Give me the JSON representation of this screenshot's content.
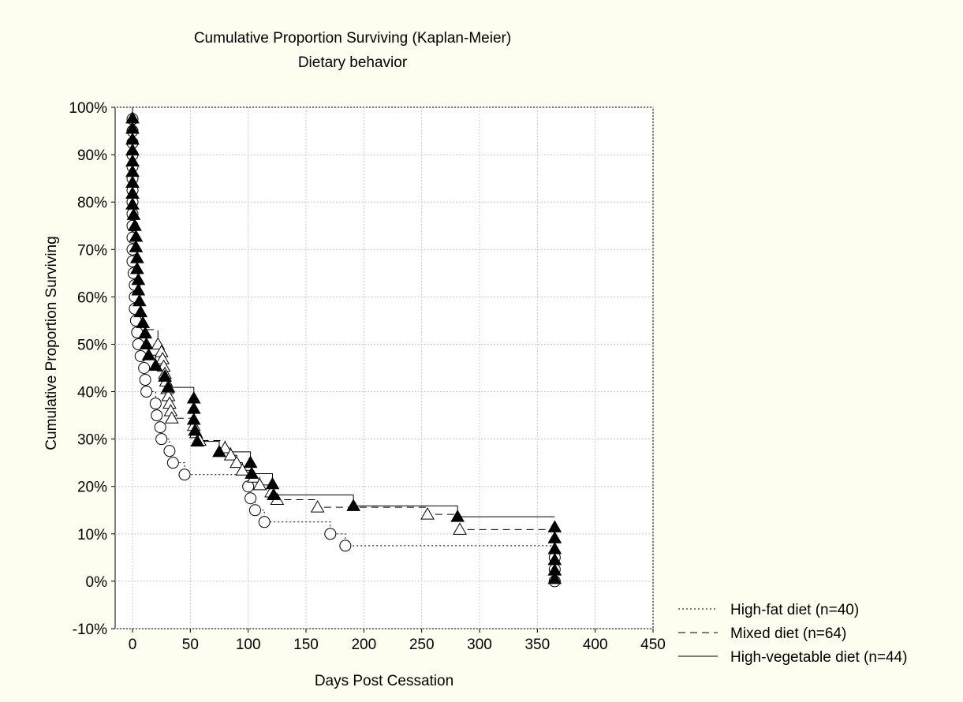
{
  "chart_data": {
    "type": "line",
    "title": "Cumulative Proportion Surviving (Kaplan-Meier)",
    "subtitle": "Dietary behavior",
    "xlabel": "Days Post Cessation",
    "ylabel": "Cumulative Proportion Surviving",
    "xlim": [
      -15,
      450
    ],
    "ylim": [
      -10,
      100
    ],
    "xticks": [
      0,
      50,
      100,
      150,
      200,
      250,
      300,
      350,
      400,
      450
    ],
    "yticks": [
      -10,
      0,
      10,
      20,
      30,
      40,
      50,
      60,
      70,
      80,
      90,
      100
    ],
    "ytick_labels": [
      "-10%",
      "0%",
      "10%",
      "20%",
      "30%",
      "40%",
      "50%",
      "60%",
      "70%",
      "80%",
      "90%",
      "100%"
    ],
    "grid": true,
    "legend_position": "bottom-right",
    "series": [
      {
        "name": "High-fat diet (n=40)",
        "line_style": "dotted",
        "marker": "circle",
        "marker_fill": "#ffffff",
        "steps": [
          [
            0,
            100
          ],
          [
            0,
            97.5
          ],
          [
            0,
            95
          ],
          [
            0,
            92.5
          ],
          [
            0,
            90
          ],
          [
            0,
            87.5
          ],
          [
            0,
            85
          ],
          [
            0,
            82.5
          ],
          [
            0,
            80
          ],
          [
            0,
            77.5
          ],
          [
            0,
            75
          ],
          [
            0,
            72.5
          ],
          [
            0,
            70
          ],
          [
            0,
            67.5
          ],
          [
            1,
            65
          ],
          [
            2,
            62.5
          ],
          [
            2,
            60
          ],
          [
            2,
            57.5
          ],
          [
            3,
            55
          ],
          [
            4,
            52.5
          ],
          [
            5,
            50
          ],
          [
            7,
            47.5
          ],
          [
            10,
            45
          ],
          [
            11,
            42.5
          ],
          [
            12,
            40
          ],
          [
            20,
            37.5
          ],
          [
            21,
            35
          ],
          [
            24,
            32.5
          ],
          [
            25,
            30
          ],
          [
            32,
            27.5
          ],
          [
            35,
            25
          ],
          [
            45,
            22.5
          ],
          [
            100,
            20
          ],
          [
            102,
            17.5
          ],
          [
            106,
            15
          ],
          [
            114,
            12.5
          ],
          [
            171,
            10
          ],
          [
            184,
            7.5
          ],
          [
            365,
            7.5
          ]
        ],
        "markers": [
          [
            0,
            97.5
          ],
          [
            0,
            95
          ],
          [
            0,
            92.5
          ],
          [
            0,
            90
          ],
          [
            0,
            87.5
          ],
          [
            0,
            85
          ],
          [
            0,
            82.5
          ],
          [
            0,
            80
          ],
          [
            0,
            77.5
          ],
          [
            0,
            75
          ],
          [
            0,
            72.5
          ],
          [
            0,
            70
          ],
          [
            0,
            67.5
          ],
          [
            1,
            65
          ],
          [
            2,
            62.5
          ],
          [
            2,
            60
          ],
          [
            2,
            57.5
          ],
          [
            3,
            55
          ],
          [
            4,
            52.5
          ],
          [
            5,
            50
          ],
          [
            7,
            47.5
          ],
          [
            10,
            45
          ],
          [
            11,
            42.5
          ],
          [
            12,
            40
          ],
          [
            20,
            37.5
          ],
          [
            21,
            35
          ],
          [
            24,
            32.5
          ],
          [
            25,
            30
          ],
          [
            32,
            27.5
          ],
          [
            35,
            25
          ],
          [
            45,
            22.5
          ],
          [
            100,
            20
          ],
          [
            102,
            17.5
          ],
          [
            106,
            15
          ],
          [
            114,
            12.5
          ],
          [
            171,
            10
          ],
          [
            184,
            7.5
          ],
          [
            365,
            5
          ],
          [
            365,
            2.5
          ],
          [
            365,
            0
          ]
        ]
      },
      {
        "name": "Mixed diet (n=64)",
        "line_style": "dashed",
        "marker": "triangle",
        "marker_fill": "#ffffff",
        "steps": [
          [
            0,
            100
          ],
          [
            0,
            96.9
          ],
          [
            0,
            93.8
          ],
          [
            0,
            90.6
          ],
          [
            0,
            87.5
          ],
          [
            0,
            84.4
          ],
          [
            0,
            81.3
          ],
          [
            0,
            78.1
          ],
          [
            0,
            75
          ],
          [
            0,
            71.9
          ],
          [
            1,
            68.8
          ],
          [
            1,
            65.6
          ],
          [
            2,
            62.5
          ],
          [
            2,
            59.4
          ],
          [
            3,
            56.3
          ],
          [
            5,
            53.1
          ],
          [
            22,
            50
          ],
          [
            25,
            48.4
          ],
          [
            26,
            46.9
          ],
          [
            27,
            45.3
          ],
          [
            28,
            43.8
          ],
          [
            29,
            42.2
          ],
          [
            30,
            40.6
          ],
          [
            31,
            39.1
          ],
          [
            32,
            37.5
          ],
          [
            33,
            35.9
          ],
          [
            34,
            34.4
          ],
          [
            53,
            32.8
          ],
          [
            55,
            31.3
          ],
          [
            58,
            29.7
          ],
          [
            80,
            28.1
          ],
          [
            85,
            26.6
          ],
          [
            90,
            25
          ],
          [
            95,
            23.4
          ],
          [
            105,
            21.9
          ],
          [
            110,
            20.3
          ],
          [
            120,
            18.8
          ],
          [
            125,
            17.2
          ],
          [
            160,
            15.6
          ],
          [
            255,
            14.1
          ],
          [
            283,
            10.9
          ],
          [
            365,
            10.9
          ]
        ],
        "markers": [
          [
            22,
            50
          ],
          [
            25,
            48.4
          ],
          [
            26,
            46.9
          ],
          [
            27,
            45.3
          ],
          [
            28,
            43.8
          ],
          [
            29,
            42.2
          ],
          [
            30,
            40.6
          ],
          [
            31,
            39.1
          ],
          [
            32,
            37.5
          ],
          [
            33,
            35.9
          ],
          [
            34,
            34.4
          ],
          [
            53,
            32.8
          ],
          [
            55,
            31.3
          ],
          [
            58,
            29.7
          ],
          [
            80,
            28.1
          ],
          [
            85,
            26.6
          ],
          [
            90,
            25
          ],
          [
            95,
            23.4
          ],
          [
            105,
            21.9
          ],
          [
            110,
            20.3
          ],
          [
            120,
            18.8
          ],
          [
            125,
            17.2
          ],
          [
            160,
            15.6
          ],
          [
            255,
            14.1
          ],
          [
            283,
            10.9
          ]
        ]
      },
      {
        "name": "High-vegetable diet (n=44)",
        "line_style": "solid",
        "marker": "triangle",
        "marker_fill": "#000000",
        "steps": [
          [
            0,
            100
          ],
          [
            0,
            97.7
          ],
          [
            0,
            95.5
          ],
          [
            0,
            93.2
          ],
          [
            0,
            90.9
          ],
          [
            0,
            88.6
          ],
          [
            0,
            86.4
          ],
          [
            0,
            84.1
          ],
          [
            0,
            81.8
          ],
          [
            0,
            79.5
          ],
          [
            1,
            77.3
          ],
          [
            2,
            75
          ],
          [
            3,
            72.7
          ],
          [
            3,
            70.5
          ],
          [
            4,
            68.2
          ],
          [
            4,
            65.9
          ],
          [
            5,
            63.6
          ],
          [
            5,
            61.4
          ],
          [
            6,
            59.1
          ],
          [
            7,
            56.8
          ],
          [
            9,
            54.5
          ],
          [
            11,
            52.3
          ],
          [
            12,
            50
          ],
          [
            14,
            47.7
          ],
          [
            20,
            45.5
          ],
          [
            28,
            43.2
          ],
          [
            31,
            40.9
          ],
          [
            53,
            38.6
          ],
          [
            53,
            36.4
          ],
          [
            53,
            34.1
          ],
          [
            54,
            31.8
          ],
          [
            56,
            29.5
          ],
          [
            75,
            27.3
          ],
          [
            102,
            25
          ],
          [
            103,
            22.7
          ],
          [
            121,
            20.5
          ],
          [
            122,
            18.2
          ],
          [
            191,
            15.9
          ],
          [
            281,
            13.6
          ],
          [
            365,
            13.6
          ]
        ],
        "markers": [
          [
            0,
            97.7
          ],
          [
            0,
            95.5
          ],
          [
            0,
            93.2
          ],
          [
            0,
            90.9
          ],
          [
            0,
            88.6
          ],
          [
            0,
            86.4
          ],
          [
            0,
            84.1
          ],
          [
            0,
            81.8
          ],
          [
            0,
            79.5
          ],
          [
            1,
            77.3
          ],
          [
            2,
            75
          ],
          [
            3,
            72.7
          ],
          [
            3,
            70.5
          ],
          [
            4,
            68.2
          ],
          [
            4,
            65.9
          ],
          [
            5,
            63.6
          ],
          [
            5,
            61.4
          ],
          [
            6,
            59.1
          ],
          [
            7,
            56.8
          ],
          [
            9,
            54.5
          ],
          [
            11,
            52.3
          ],
          [
            12,
            50
          ],
          [
            14,
            47.7
          ],
          [
            20,
            45.5
          ],
          [
            28,
            43.2
          ],
          [
            31,
            40.9
          ],
          [
            53,
            38.6
          ],
          [
            53,
            36.4
          ],
          [
            53,
            34.1
          ],
          [
            54,
            31.8
          ],
          [
            56,
            29.5
          ],
          [
            75,
            27.3
          ],
          [
            102,
            25
          ],
          [
            103,
            22.7
          ],
          [
            121,
            20.5
          ],
          [
            122,
            18.2
          ],
          [
            191,
            15.9
          ],
          [
            281,
            13.6
          ],
          [
            365,
            11.4
          ],
          [
            365,
            9.1
          ],
          [
            365,
            6.8
          ],
          [
            365,
            4.5
          ],
          [
            365,
            2.3
          ],
          [
            365,
            0.5
          ]
        ]
      }
    ]
  }
}
